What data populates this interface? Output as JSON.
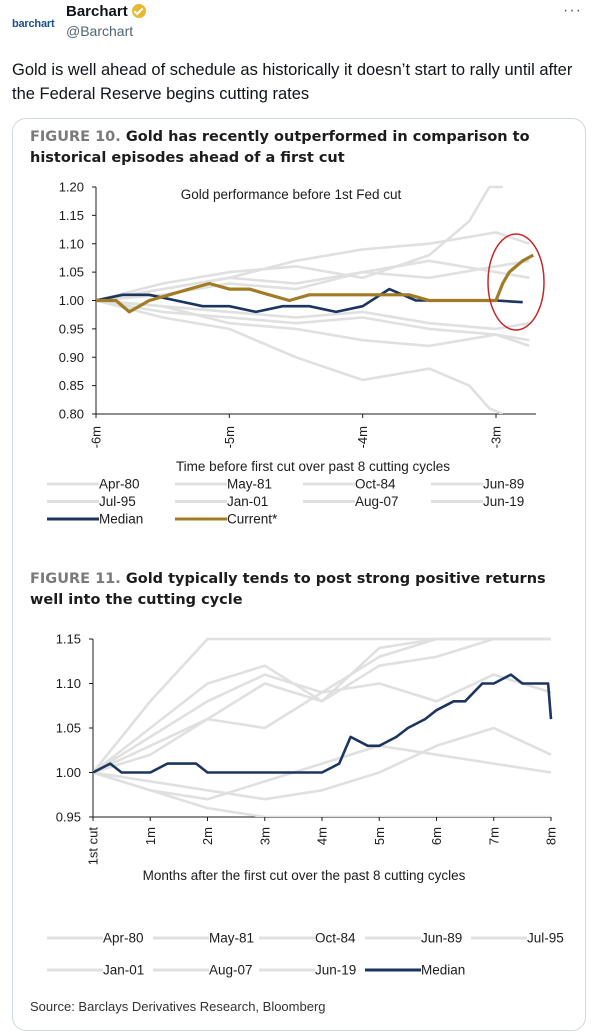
{
  "tweet": {
    "logo_text": "barchart",
    "display_name": "Barchart",
    "handle": "@Barchart",
    "more_label": "···",
    "text": "Gold is well ahead of schedule as historically it doesn’t start to rally until after the Federal Reserve begins cutting rates"
  },
  "figure10": {
    "label": "FIGURE 10.",
    "title": "Gold has recently outperformed in comparison to historical episodes ahead of a first cut"
  },
  "figure11": {
    "label": "FIGURE 11.",
    "title": "Gold typically tends to post strong positive returns well into the cutting cycle"
  },
  "source": "Source: Barclays Derivatives Research, Bloomberg",
  "colors": {
    "median": "#1b355e",
    "current": "#a07d24",
    "history": "#e0e0e0",
    "highlight": "#c62828"
  },
  "chart_data": [
    {
      "type": "line",
      "title": "Gold performance before 1st Fed cut",
      "xlabel": "Time before first cut over past 8 cutting cycles",
      "ylabel": "",
      "x_ticks": [
        "-6m",
        "-5m",
        "-4m",
        "-3m"
      ],
      "x_range": [
        -6,
        -2.7
      ],
      "ylim": [
        0.8,
        1.2
      ],
      "y_ticks": [
        "0.80",
        "0.85",
        "0.90",
        "0.95",
        "1.00",
        "1.05",
        "1.10",
        "1.15",
        "1.20"
      ],
      "legend": [
        "Apr-80",
        "May-81",
        "Oct-84",
        "Jun-89",
        "Jul-95",
        "Jan-01",
        "Aug-07",
        "Jun-19",
        "Median",
        "Current*"
      ],
      "legend_placement": "bottom",
      "annotation": "red circle highlighting recent Current* rally",
      "series": [
        {
          "name": "Median",
          "color": "#1b355e",
          "x": [
            -6.0,
            -5.8,
            -5.6,
            -5.4,
            -5.2,
            -5.0,
            -4.8,
            -4.6,
            -4.4,
            -4.2,
            -4.0,
            -3.8,
            -3.6,
            -3.4,
            -3.2,
            -3.0,
            -2.8
          ],
          "y": [
            1.0,
            1.01,
            1.01,
            1.0,
            0.99,
            0.99,
            0.98,
            0.99,
            0.99,
            0.98,
            0.99,
            1.02,
            1.0,
            1.0,
            1.0,
            1.0,
            0.997
          ]
        },
        {
          "name": "Current*",
          "color": "#a07d24",
          "x": [
            -6.0,
            -5.85,
            -5.75,
            -5.6,
            -5.45,
            -5.3,
            -5.15,
            -5.0,
            -4.85,
            -4.7,
            -4.55,
            -4.4,
            -4.25,
            -4.1,
            -3.95,
            -3.8,
            -3.65,
            -3.5,
            -3.35,
            -3.2,
            -3.1,
            -3.0,
            -2.95,
            -2.9,
            -2.85,
            -2.8,
            -2.72
          ],
          "y": [
            1.0,
            1.0,
            0.98,
            1.0,
            1.01,
            1.02,
            1.03,
            1.02,
            1.02,
            1.01,
            1.0,
            1.01,
            1.01,
            1.01,
            1.01,
            1.01,
            1.01,
            1.0,
            1.0,
            1.0,
            1.0,
            1.0,
            1.03,
            1.05,
            1.06,
            1.07,
            1.08
          ]
        },
        {
          "name": "Apr-80",
          "x": [
            -6.0,
            -5.5,
            -5.0,
            -4.5,
            -4.0,
            -3.5,
            -3.2,
            -3.05,
            -2.95
          ],
          "y": [
            1.0,
            1.03,
            1.05,
            1.06,
            1.04,
            1.08,
            1.14,
            1.2,
            1.2
          ]
        },
        {
          "name": "May-81",
          "x": [
            -6.0,
            -5.5,
            -5.0,
            -4.5,
            -4.0,
            -3.5,
            -3.2,
            -3.05,
            -2.95
          ],
          "y": [
            1.0,
            0.97,
            0.95,
            0.9,
            0.86,
            0.88,
            0.85,
            0.81,
            0.8
          ]
        },
        {
          "name": "Oct-84",
          "x": [
            -6.0,
            -5.5,
            -5.0,
            -4.5,
            -4.0,
            -3.5,
            -3.0,
            -2.75
          ],
          "y": [
            1.0,
            1.02,
            1.04,
            1.03,
            1.05,
            1.04,
            1.06,
            1.07
          ]
        },
        {
          "name": "Jun-89",
          "x": [
            -6.0,
            -5.5,
            -5.0,
            -4.5,
            -4.0,
            -3.5,
            -3.0,
            -2.75
          ],
          "y": [
            1.0,
            0.98,
            0.97,
            0.96,
            0.97,
            0.95,
            0.94,
            0.92
          ]
        },
        {
          "name": "Jul-95",
          "x": [
            -6.0,
            -5.5,
            -5.0,
            -4.5,
            -4.0,
            -3.5,
            -3.0,
            -2.75
          ],
          "y": [
            1.0,
            1.01,
            1.03,
            1.02,
            1.05,
            1.07,
            1.05,
            1.04
          ]
        },
        {
          "name": "Jan-01",
          "x": [
            -6.0,
            -5.5,
            -5.0,
            -4.5,
            -4.0,
            -3.5,
            -3.0,
            -2.75
          ],
          "y": [
            1.0,
            0.99,
            0.96,
            0.95,
            0.93,
            0.92,
            0.94,
            0.93
          ]
        },
        {
          "name": "Aug-07",
          "x": [
            -6.0,
            -5.5,
            -5.0,
            -4.5,
            -4.0,
            -3.5,
            -3.0,
            -2.75
          ],
          "y": [
            1.0,
            1.02,
            1.04,
            1.07,
            1.09,
            1.1,
            1.12,
            1.1
          ]
        },
        {
          "name": "Jun-19",
          "x": [
            -6.0,
            -5.5,
            -5.0,
            -4.5,
            -4.0,
            -3.5,
            -3.0,
            -2.75
          ],
          "y": [
            1.0,
            0.99,
            0.98,
            0.97,
            0.98,
            0.96,
            0.95,
            0.96
          ]
        }
      ]
    },
    {
      "type": "line",
      "title": "",
      "xlabel": "Months after the first cut over the past 8 cutting cycles",
      "ylabel": "",
      "x_ticks": [
        "1st cut",
        "1m",
        "2m",
        "3m",
        "4m",
        "5m",
        "6m",
        "7m",
        "8m"
      ],
      "x_range": [
        0,
        8
      ],
      "ylim": [
        0.95,
        1.15
      ],
      "y_ticks": [
        "0.95",
        "1.00",
        "1.05",
        "1.10",
        "1.15"
      ],
      "legend": [
        "Apr-80",
        "May-81",
        "Oct-84",
        "Jun-89",
        "Jul-95",
        "Jan-01",
        "Aug-07",
        "Jun-19",
        "Median"
      ],
      "legend_placement": "bottom",
      "series": [
        {
          "name": "Median",
          "color": "#1b355e",
          "x": [
            0,
            0.3,
            0.5,
            0.8,
            1.0,
            1.3,
            1.5,
            1.8,
            2.0,
            2.3,
            2.5,
            2.8,
            3.0,
            3.3,
            3.5,
            3.8,
            4.0,
            4.3,
            4.5,
            4.8,
            5.0,
            5.3,
            5.5,
            5.8,
            6.0,
            6.3,
            6.5,
            6.8,
            7.0,
            7.3,
            7.5,
            7.8,
            7.95,
            8.0
          ],
          "y": [
            1.0,
            1.01,
            1.0,
            1.0,
            1.0,
            1.01,
            1.01,
            1.01,
            1.0,
            1.0,
            1.0,
            1.0,
            1.0,
            1.0,
            1.0,
            1.0,
            1.0,
            1.01,
            1.04,
            1.03,
            1.03,
            1.04,
            1.05,
            1.06,
            1.07,
            1.08,
            1.08,
            1.1,
            1.1,
            1.11,
            1.1,
            1.1,
            1.1,
            1.06
          ]
        },
        {
          "name": "Apr-80",
          "x": [
            0,
            1,
            2,
            3,
            4,
            5,
            6,
            7,
            8
          ],
          "y": [
            1.0,
            1.08,
            1.15,
            1.15,
            1.15,
            1.15,
            1.15,
            1.15,
            1.15
          ]
        },
        {
          "name": "May-81",
          "x": [
            0,
            1,
            2,
            3,
            4,
            5,
            6,
            7,
            8
          ],
          "y": [
            1.0,
            0.98,
            0.96,
            0.95,
            0.95,
            0.95,
            0.95,
            0.95,
            0.95
          ]
        },
        {
          "name": "Oct-84",
          "x": [
            0,
            1,
            2,
            3,
            4,
            5,
            6,
            7,
            8
          ],
          "y": [
            1.0,
            1.05,
            1.1,
            1.12,
            1.08,
            1.14,
            1.15,
            1.15,
            1.15
          ]
        },
        {
          "name": "Jun-89",
          "x": [
            0,
            1,
            2,
            3,
            4,
            5,
            6,
            7,
            8
          ],
          "y": [
            1.0,
            0.99,
            0.98,
            0.97,
            0.98,
            1.0,
            1.03,
            1.05,
            1.02
          ]
        },
        {
          "name": "Jul-95",
          "x": [
            0,
            1,
            2,
            3,
            4,
            5,
            6,
            7,
            8
          ],
          "y": [
            1.0,
            1.02,
            1.06,
            1.1,
            1.08,
            1.12,
            1.13,
            1.15,
            1.15
          ]
        },
        {
          "name": "Jan-01",
          "x": [
            0,
            1,
            2,
            3,
            4,
            5,
            6,
            7,
            8
          ],
          "y": [
            1.0,
            0.98,
            0.97,
            0.99,
            1.01,
            1.03,
            1.02,
            1.01,
            1.0
          ]
        },
        {
          "name": "Aug-07",
          "x": [
            0,
            1,
            2,
            3,
            4,
            5,
            6,
            7,
            8
          ],
          "y": [
            1.0,
            1.04,
            1.08,
            1.11,
            1.09,
            1.13,
            1.15,
            1.15,
            1.15
          ]
        },
        {
          "name": "Jun-19",
          "x": [
            0,
            1,
            2,
            3,
            4,
            5,
            6,
            7,
            8
          ],
          "y": [
            1.0,
            1.03,
            1.06,
            1.05,
            1.09,
            1.1,
            1.08,
            1.11,
            1.09
          ]
        }
      ]
    }
  ]
}
